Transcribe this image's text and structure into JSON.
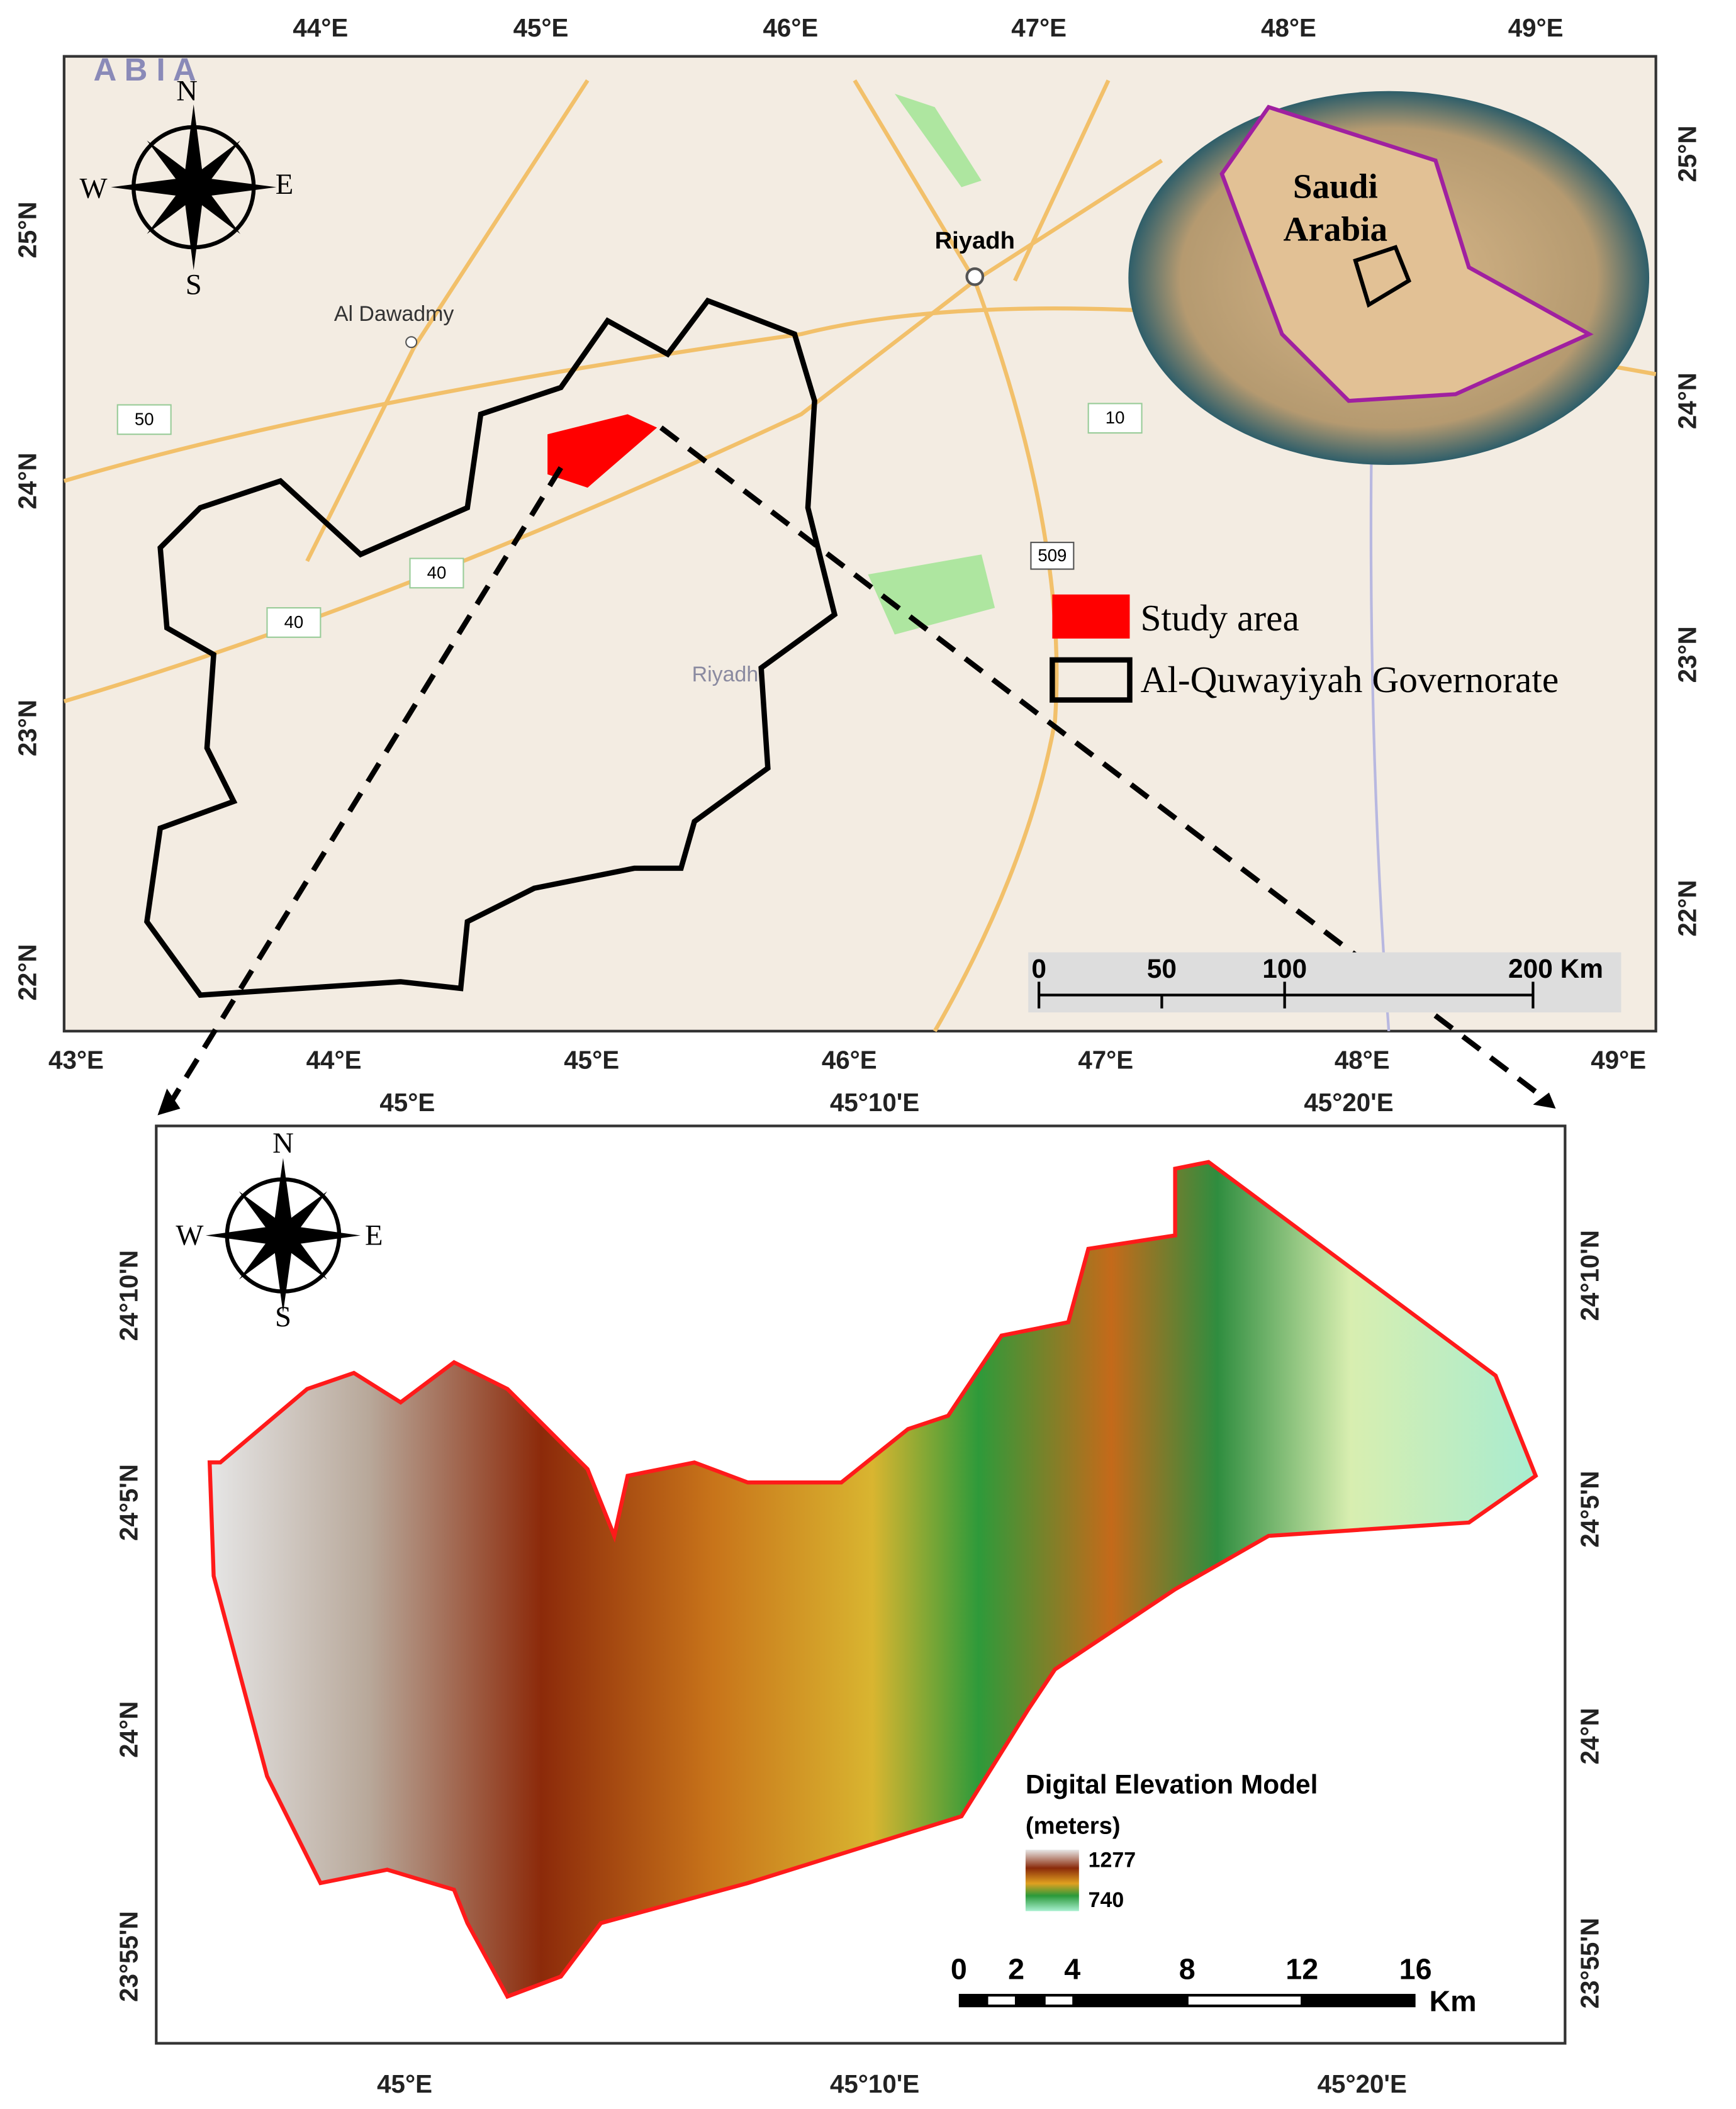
{
  "top_map": {
    "lon_top": [
      "44°E",
      "45°E",
      "46°E",
      "47°E",
      "48°E",
      "49°E"
    ],
    "lon_bottom": [
      "43°E",
      "44°E",
      "45°E",
      "46°E",
      "47°E",
      "48°E",
      "49°E"
    ],
    "lat_left": [
      "25°N",
      "24°N",
      "23°N",
      "22°N"
    ],
    "lat_right": [
      "25°N",
      "24°N",
      "23°N",
      "22°N"
    ],
    "compass": [
      "N",
      "S",
      "W",
      "E"
    ],
    "places": [
      "Riyadh",
      "Al Dawadmy",
      "Riyadh",
      "A B I A"
    ],
    "highways": [
      "50",
      "40",
      "40",
      "10",
      "509"
    ],
    "inset_label": [
      "Saudi",
      "Arabia"
    ],
    "legend": [
      "Study area",
      "Al-Quwayiyah Governorate"
    ],
    "scale": [
      "0",
      "50",
      "100",
      "200 Km"
    ]
  },
  "bottom_map": {
    "lon_top": [
      "45°E",
      "45°10'E",
      "45°20'E"
    ],
    "lon_bottom": [
      "45°E",
      "45°10'E",
      "45°20'E"
    ],
    "lat_left": [
      "24°10'N",
      "24°5'N",
      "24°N",
      "23°55'N"
    ],
    "lat_right": [
      "24°10'N",
      "24°5'N",
      "24°N",
      "23°55'N"
    ],
    "compass": [
      "N",
      "S",
      "W",
      "E"
    ],
    "legend_title": "Digital Elevation Model",
    "legend_unit": "(meters)",
    "legend_values": [
      "1277",
      "740"
    ],
    "scale": [
      "0",
      "2",
      "4",
      "8",
      "12",
      "16"
    ],
    "scale_unit": "Km"
  }
}
